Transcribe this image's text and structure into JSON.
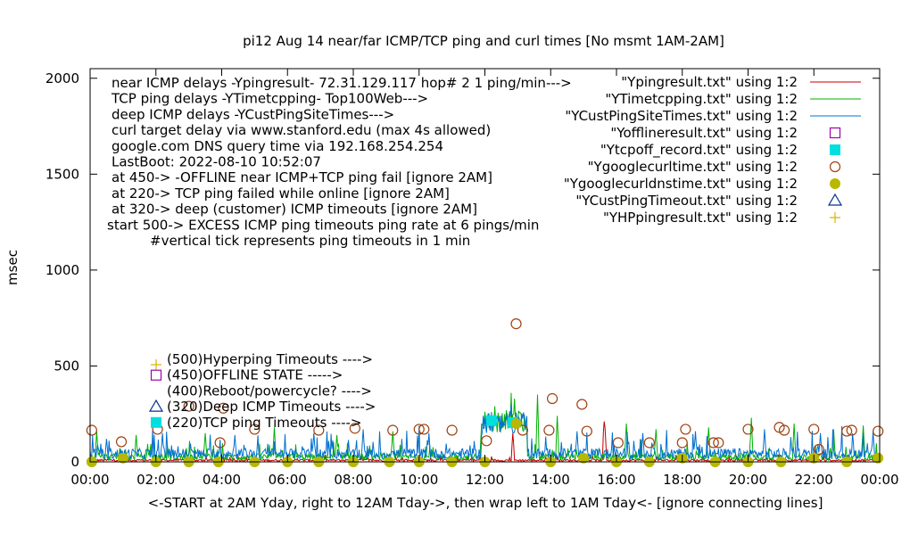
{
  "chart_data": {
    "type": "line",
    "title": "pi12 Aug 14  near/far ICMP/TCP ping and curl times [No msmt 1AM-2AM]",
    "xlabel": "<-START at 2AM Yday, right to 12AM Tday->, then wrap left to 1AM Tday<- [ignore connecting lines]",
    "ylabel": "msec",
    "xlim": [
      0,
      24
    ],
    "ylim": [
      0,
      2050
    ],
    "x_tick_labels": [
      "00:00",
      "02:00",
      "04:00",
      "06:00",
      "08:00",
      "10:00",
      "12:00",
      "14:00",
      "16:00",
      "18:00",
      "20:00",
      "22:00",
      "00:00"
    ],
    "y_ticks": [
      0,
      500,
      1000,
      1500,
      2000
    ],
    "notes": [
      "near ICMP delays -Ypingresult- 72.31.129.117 hop# 2  1 ping/min--->",
      "TCP ping delays -YTimetcpping- Top100Web--->",
      "deep ICMP delays -YCustPingSiteTimes--->",
      "curl target delay via www.stanford.edu (max 4s allowed)",
      "google.com DNS query time via 192.168.254.254",
      "LastBoot: 2022-08-10 10:52:07",
      "at 450-> -OFFLINE near ICMP+TCP ping fail [ignore 2AM]",
      "at 220-> TCP ping failed while online [ignore 2AM]",
      "at 320-> deep (customer) ICMP timeouts [ignore 2AM]",
      "start 500-> EXCESS ICMP ping timeouts ping rate at 6 pings/min",
      "#vertical tick represents ping timeouts in 1 min"
    ],
    "timeout_labels": [
      "(500)Hyperping Timeouts ---->",
      "(450)OFFLINE STATE ----->",
      "(400)Reboot/powercycle? ---->",
      "(320)Deep ICMP Timeouts ---->",
      "(220)TCP ping Timeouts ---->"
    ],
    "legend_position": "top-right",
    "series": [
      {
        "name": "\"Ypingresult.txt\" using 1:2",
        "style": "line",
        "color": "#c00000",
        "typical": 10,
        "spikes": [
          [
            15.62,
            230
          ],
          [
            15.65,
            180
          ],
          [
            12.85,
            150
          ]
        ]
      },
      {
        "name": "\"YTimetcpping.txt\" using 1:2",
        "style": "line",
        "color": "#00b000",
        "typical": 30,
        "spikes": [
          [
            0.2,
            160
          ],
          [
            1.4,
            140
          ],
          [
            3.5,
            150
          ],
          [
            5.6,
            180
          ],
          [
            7.5,
            140
          ],
          [
            9.2,
            160
          ],
          [
            11.9,
            200
          ],
          [
            12.3,
            290
          ],
          [
            12.8,
            360
          ],
          [
            12.9,
            330
          ],
          [
            13.6,
            350
          ],
          [
            14.2,
            240
          ],
          [
            16.3,
            200
          ],
          [
            17.2,
            170
          ],
          [
            18.8,
            180
          ],
          [
            20.1,
            230
          ],
          [
            21.4,
            200
          ],
          [
            22.6,
            170
          ],
          [
            23.5,
            190
          ]
        ]
      },
      {
        "name": "\"YCustPingSiteTimes.txt\" using 1:2",
        "style": "line",
        "color": "#0070d0",
        "typical": 50,
        "spikes": [
          [
            0.5,
            120
          ],
          [
            2.2,
            150
          ],
          [
            4.4,
            140
          ],
          [
            6.8,
            150
          ],
          [
            8.3,
            170
          ],
          [
            10.3,
            150
          ],
          [
            12.2,
            260
          ],
          [
            12.5,
            240
          ],
          [
            12.8,
            300
          ],
          [
            13.1,
            200
          ],
          [
            14.8,
            160
          ],
          [
            16.8,
            150
          ],
          [
            18.4,
            160
          ],
          [
            20.5,
            170
          ],
          [
            22.2,
            150
          ],
          [
            23.8,
            160
          ]
        ]
      },
      {
        "name": "\"Yofflineresult.txt\" using 1:2",
        "style": "point",
        "marker": "open-square",
        "color": "#a000b0",
        "points": []
      },
      {
        "name": "\"Ytcpoff_record.txt\" using 1:2",
        "style": "point",
        "marker": "filled-square",
        "color": "#00dede",
        "points": [
          [
            12.2,
            215
          ],
          [
            12.85,
            205
          ]
        ]
      },
      {
        "name": "\"Ygooglecurltime.txt\" using 1:2",
        "style": "point",
        "marker": "open-circle",
        "color": "#a04010",
        "points": [
          [
            0.05,
            165
          ],
          [
            0.95,
            105
          ],
          [
            2.05,
            170
          ],
          [
            3.0,
            290
          ],
          [
            3.95,
            100
          ],
          [
            4.05,
            280
          ],
          [
            5.0,
            170
          ],
          [
            6.95,
            165
          ],
          [
            8.05,
            175
          ],
          [
            9.2,
            165
          ],
          [
            10.0,
            170
          ],
          [
            10.15,
            170
          ],
          [
            11.0,
            165
          ],
          [
            12.05,
            110
          ],
          [
            12.95,
            720
          ],
          [
            13.15,
            165
          ],
          [
            13.95,
            165
          ],
          [
            14.05,
            330
          ],
          [
            14.95,
            300
          ],
          [
            15.1,
            160
          ],
          [
            16.05,
            100
          ],
          [
            17.0,
            100
          ],
          [
            18.0,
            100
          ],
          [
            18.1,
            170
          ],
          [
            18.95,
            100
          ],
          [
            19.1,
            100
          ],
          [
            20.0,
            170
          ],
          [
            20.95,
            180
          ],
          [
            21.1,
            165
          ],
          [
            22.0,
            170
          ],
          [
            22.15,
            65
          ],
          [
            23.0,
            160
          ],
          [
            23.15,
            165
          ],
          [
            23.95,
            160
          ]
        ]
      },
      {
        "name": "\"Ygooglecurldnstime.txt\" using 1:2",
        "style": "point",
        "marker": "filled-circle",
        "color": "#b8b800",
        "points": [
          [
            0.05,
            0
          ],
          [
            1.0,
            20
          ],
          [
            2.0,
            0
          ],
          [
            3.0,
            0
          ],
          [
            3.9,
            0
          ],
          [
            5.0,
            0
          ],
          [
            6.0,
            0
          ],
          [
            6.95,
            0
          ],
          [
            8.0,
            0
          ],
          [
            9.1,
            0
          ],
          [
            10.0,
            0
          ],
          [
            11.0,
            0
          ],
          [
            12.0,
            0
          ],
          [
            12.95,
            200
          ],
          [
            14.0,
            0
          ],
          [
            15.0,
            20
          ],
          [
            16.0,
            0
          ],
          [
            17.0,
            0
          ],
          [
            18.0,
            20
          ],
          [
            19.0,
            0
          ],
          [
            20.0,
            0
          ],
          [
            21.0,
            0
          ],
          [
            22.0,
            20
          ],
          [
            23.0,
            0
          ],
          [
            23.95,
            20
          ]
        ]
      },
      {
        "name": "\"YCustPingTimeout.txt\" using 1:2",
        "style": "point",
        "marker": "open-triangle",
        "color": "#003090",
        "points": []
      },
      {
        "name": "\"YHPpingresult.txt\" using 1:2",
        "style": "point",
        "marker": "plus",
        "color": "#e0b000",
        "points": []
      }
    ]
  }
}
